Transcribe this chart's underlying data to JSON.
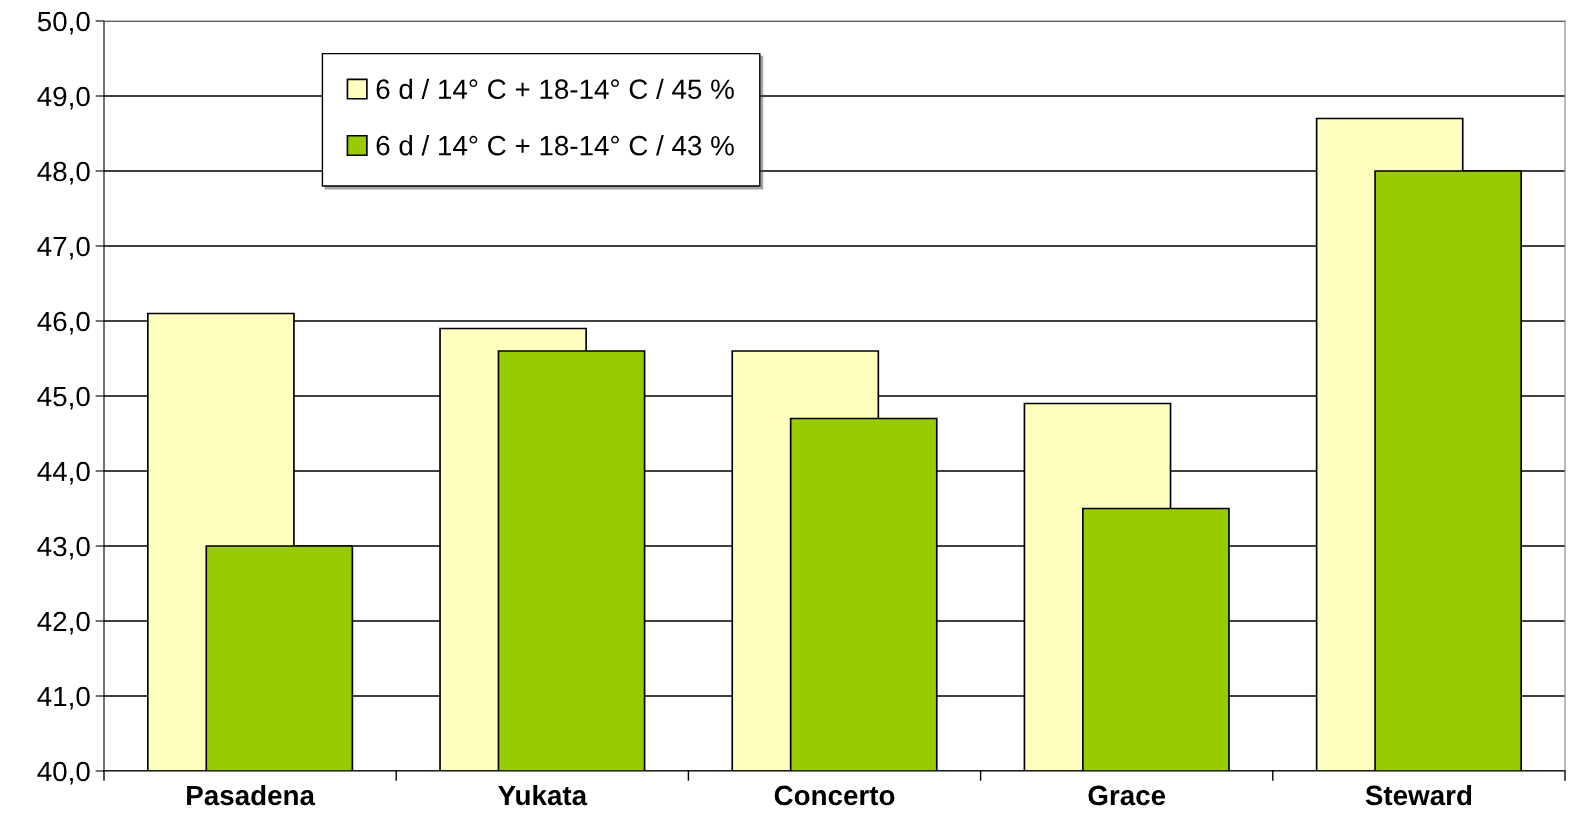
{
  "chart_data": {
    "type": "bar",
    "categories": [
      "Pasadena",
      "Yukata",
      "Concerto",
      "Grace",
      "Steward"
    ],
    "series": [
      {
        "name": "6 d / 14° C + 18-14° C / 45 %",
        "color": "#ffffc0",
        "values": [
          46.1,
          45.9,
          45.6,
          44.9,
          48.7
        ]
      },
      {
        "name": "6 d / 14° C + 18-14° C / 43 %",
        "color": "#99cc00",
        "values": [
          43.0,
          45.6,
          44.7,
          43.5,
          48.0
        ]
      }
    ],
    "ylim": [
      40,
      50
    ],
    "yticks": [
      {
        "value": 40,
        "label": "40,0"
      },
      {
        "value": 41,
        "label": "41,0"
      },
      {
        "value": 42,
        "label": "42,0"
      },
      {
        "value": 43,
        "label": "43,0"
      },
      {
        "value": 44,
        "label": "44,0"
      },
      {
        "value": 45,
        "label": "45,0"
      },
      {
        "value": 46,
        "label": "46,0"
      },
      {
        "value": 47,
        "label": "47,0"
      },
      {
        "value": 48,
        "label": "48,0"
      },
      {
        "value": 49,
        "label": "49,0"
      },
      {
        "value": 50,
        "label": "50,0"
      }
    ],
    "grid": "y",
    "legend": "top left"
  }
}
